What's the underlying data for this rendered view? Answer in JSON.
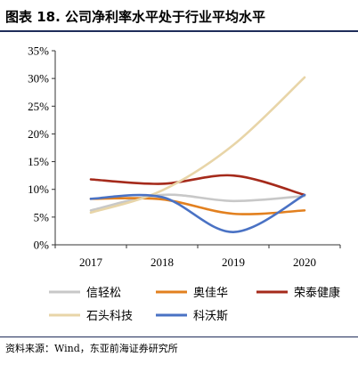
{
  "figure": {
    "title": "图表 18. 公司净利率水平处于行业平均水平",
    "source": "资料来源：Wind，东亚前海证券研究所"
  },
  "chart_data": {
    "type": "line",
    "title": "",
    "xlabel": "",
    "ylabel": "",
    "categories": [
      "2017",
      "2018",
      "2019",
      "2020"
    ],
    "ylim": [
      0,
      35
    ],
    "yticks": [
      0,
      5,
      10,
      15,
      20,
      25,
      30,
      35
    ],
    "ytick_labels": [
      "0%",
      "5%",
      "10%",
      "15%",
      "20%",
      "25%",
      "30%",
      "35%"
    ],
    "grid": false,
    "legend_position": "bottom",
    "series": [
      {
        "name": "信轻松",
        "color": "#c8c8c8",
        "values": [
          6.2,
          9.0,
          7.9,
          8.8
        ]
      },
      {
        "name": "奥佳华",
        "color": "#e2801f",
        "values": [
          8.3,
          8.2,
          5.6,
          6.2
        ]
      },
      {
        "name": "荣泰健康",
        "color": "#a52a1b",
        "values": [
          11.8,
          11.0,
          12.5,
          9.0
        ]
      },
      {
        "name": "石头科技",
        "color": "#e8d5a8",
        "values": [
          5.8,
          9.8,
          18.0,
          30.2
        ]
      },
      {
        "name": "科沃斯",
        "color": "#4a72c4",
        "values": [
          8.3,
          8.6,
          2.3,
          9.0
        ]
      }
    ]
  }
}
